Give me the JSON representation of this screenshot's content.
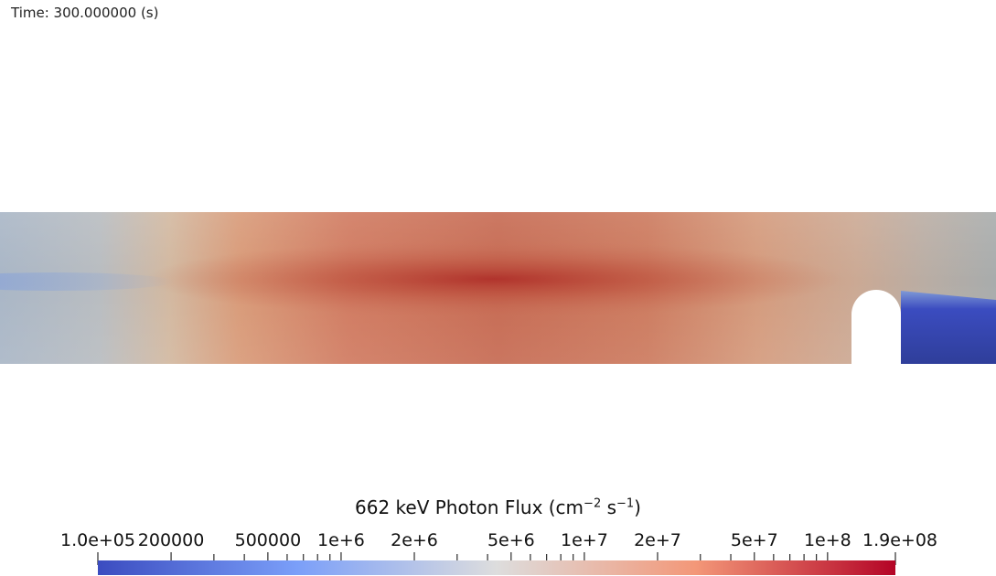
{
  "time_label": "Time: 300.000000 (s)",
  "colorbar": {
    "title_main": "662 keV Photon Flux (cm",
    "title_exp1": "−2",
    "title_mid": " s",
    "title_exp2": "−1",
    "title_end": ")",
    "min": 100000,
    "max": 190000000,
    "scale": "log",
    "colormap": "Cool to Warm",
    "low_color": "#3b4cc0",
    "mid_color": "#dddddd",
    "high_color": "#b40426",
    "labels": [
      "1.0e+05",
      "200000",
      "500000",
      "1e+6",
      "2e+6",
      "5e+6",
      "1e+7",
      "2e+7",
      "5e+7",
      "1e+8",
      "1.9e+08"
    ],
    "label_values": [
      100000,
      200000,
      500000,
      1000000,
      2000000,
      5000000,
      10000000,
      20000000,
      50000000,
      100000000,
      190000000
    ],
    "minor_tick_values": [
      300000,
      400000,
      600000,
      700000,
      800000,
      900000,
      3000000,
      4000000,
      6000000,
      7000000,
      8000000,
      9000000,
      30000000,
      40000000,
      60000000,
      70000000,
      80000000,
      90000000
    ]
  }
}
